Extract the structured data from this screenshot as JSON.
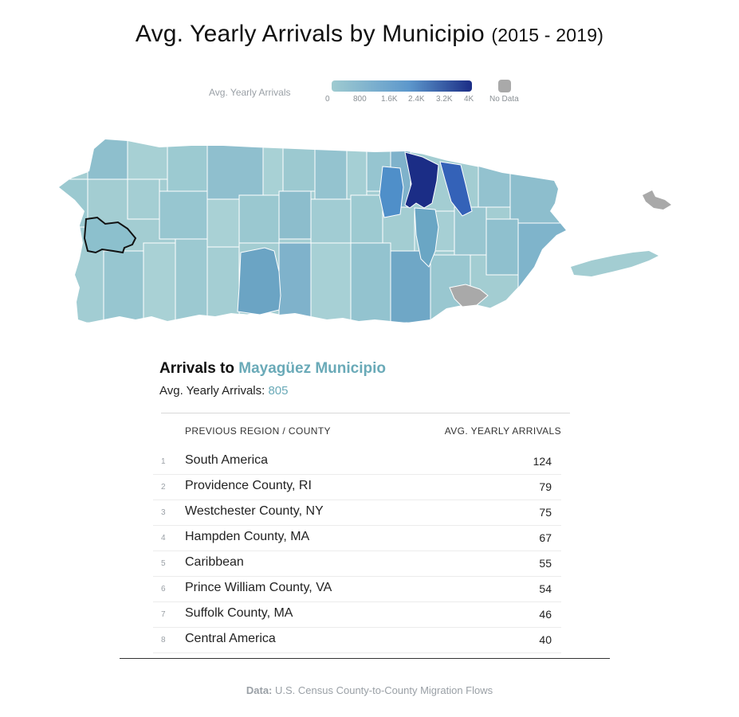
{
  "title": {
    "main": "Avg. Yearly Arrivals by Municipio",
    "years": "(2015 - 2019)"
  },
  "legend": {
    "label": "Avg. Yearly Arrivals",
    "ticks": [
      "0",
      "800",
      "1.6K",
      "2.4K",
      "3.2K",
      "4K"
    ],
    "tick_values": [
      0,
      800,
      1600,
      2400,
      3200,
      4000
    ],
    "no_data_label": "No Data",
    "color_low": "#9fcbd0",
    "color_high": "#1b2d86",
    "no_data_color": "#a9a9a9"
  },
  "map": {
    "selected_municipio": "Mayagüez",
    "selected_outline_color": "#111111",
    "highlight_colors": [
      "#9fcbd0",
      "#6aa6c4",
      "#4f8fc9",
      "#3462b8",
      "#1b2d86",
      "#a9a9a9"
    ]
  },
  "panel": {
    "title_prefix": "Arrivals to",
    "municipio": "Mayagüez Municipio",
    "subtitle_label": "Avg. Yearly Arrivals:",
    "subtitle_value": "805",
    "col_region": "PREVIOUS REGION / COUNTY",
    "col_arrivals": "AVG. YEARLY ARRIVALS",
    "rows": [
      {
        "rank": "1",
        "name": "South America",
        "value": "124"
      },
      {
        "rank": "2",
        "name": "Providence County, RI",
        "value": "79"
      },
      {
        "rank": "3",
        "name": "Westchester County, NY",
        "value": "75"
      },
      {
        "rank": "4",
        "name": "Hampden County, MA",
        "value": "67"
      },
      {
        "rank": "5",
        "name": "Caribbean",
        "value": "55"
      },
      {
        "rank": "6",
        "name": "Prince William County, VA",
        "value": "54"
      },
      {
        "rank": "7",
        "name": "Suffolk County, MA",
        "value": "46"
      },
      {
        "rank": "8",
        "name": "Central America",
        "value": "40"
      }
    ]
  },
  "source": {
    "label": "Data:",
    "text": "U.S. Census County-to-County Migration Flows"
  }
}
